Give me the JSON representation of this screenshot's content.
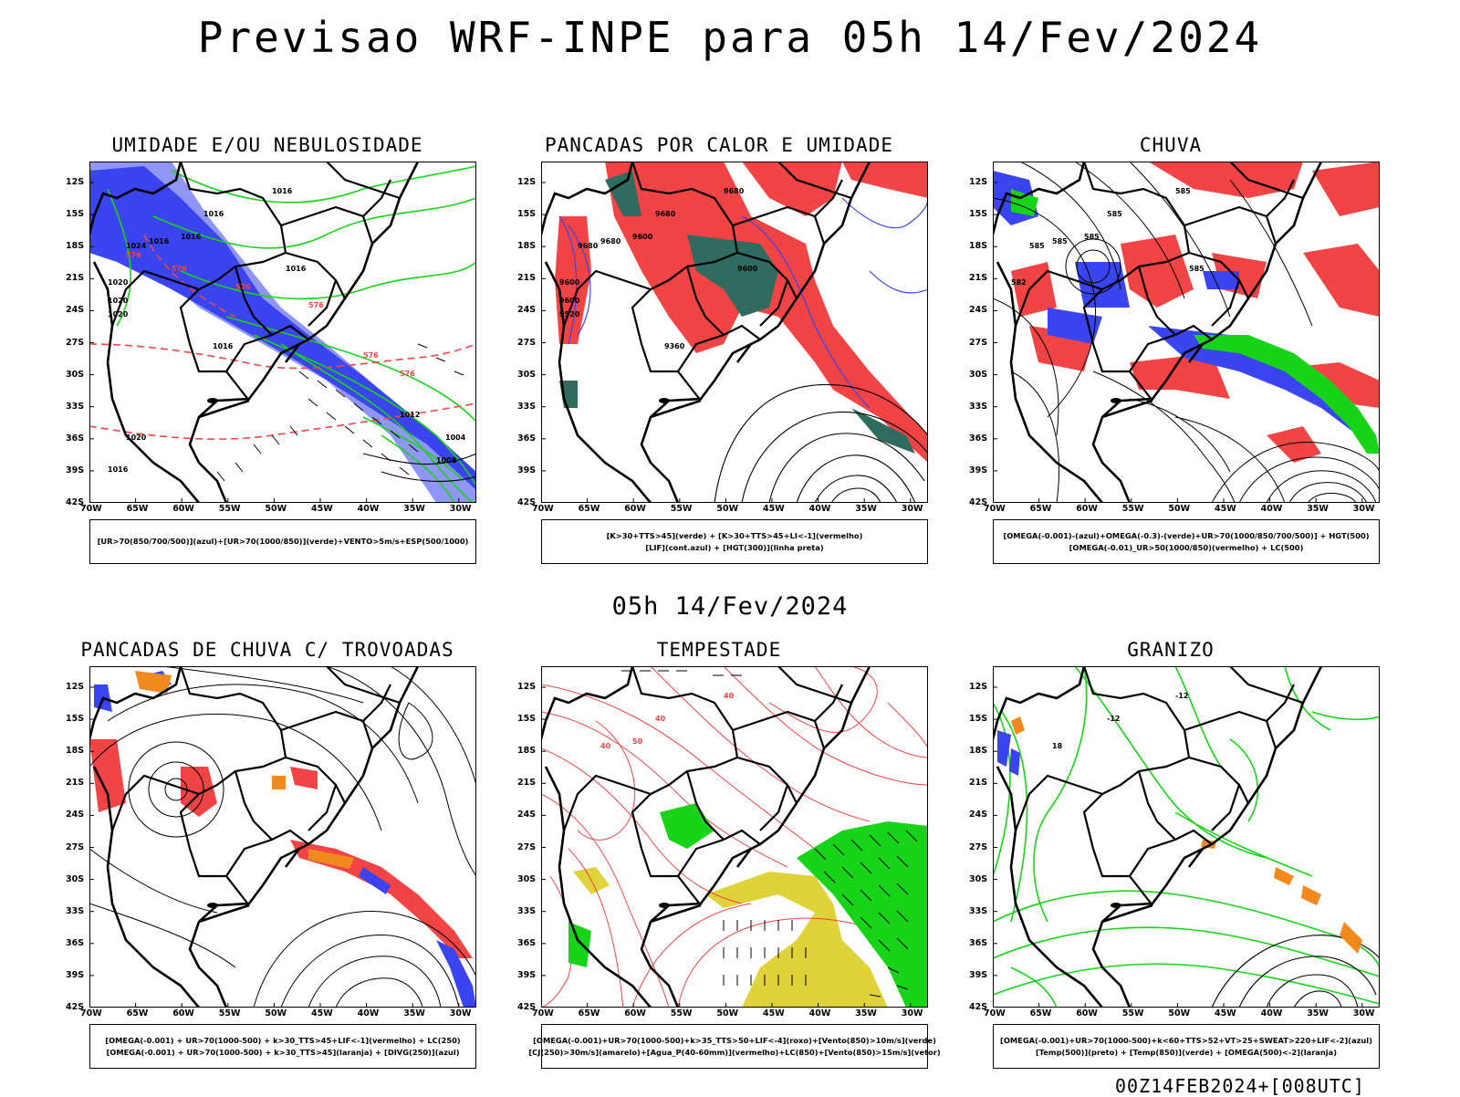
{
  "title": "Previsao WRF-INPE  para 05h 14/Fev/2024",
  "subtitle": "05h 14/Fev/2024",
  "footer": "00Z14FEB2024+[008UTC]",
  "axes": {
    "lat_labels": [
      "12S",
      "15S",
      "18S",
      "21S",
      "24S",
      "27S",
      "30S",
      "33S",
      "36S",
      "39S",
      "42S"
    ],
    "lon_labels": [
      "70W",
      "65W",
      "60W",
      "55W",
      "50W",
      "45W",
      "40W",
      "35W",
      "30W"
    ]
  },
  "colors": {
    "blue": "#3a44f0",
    "lightblue": "#8f96f5",
    "green": "#18d418",
    "red": "#f24444",
    "darkgreen": "#2f6b5e",
    "orange": "#f08a1c",
    "yellow": "#e0d23a",
    "black": "#000000"
  },
  "panels": [
    {
      "title": "UMIDADE E/OU NEBULOSIDADE",
      "legend": [
        "[UR>70(850/700/500)](azul)+[UR>70(1000/850)](verde)+VENTO>5m/s+ESP(500/1000)"
      ],
      "contour_labels": [
        "1016",
        "1016",
        "1016",
        "1016",
        "1016",
        "1024",
        "1020",
        "1020",
        "1020",
        "1016",
        "1012",
        "1008",
        "1004",
        "1020",
        "1016",
        "576",
        "576",
        "576",
        "576",
        "576",
        "576"
      ]
    },
    {
      "title": "PANCADAS POR CALOR E UMIDADE",
      "legend": [
        "[K>30+TTS>45](verde) + [K>30+TTS>45+LI<-1](vermelho)",
        "[LIF](cont.azul) + [HGT(300)](linha preta)"
      ],
      "contour_labels": [
        "9680",
        "9680",
        "9680",
        "9600",
        "9600",
        "9680",
        "9600",
        "9600",
        "9520",
        "9360"
      ]
    },
    {
      "title": "CHUVA",
      "legend": [
        "[OMEGA(-0.001)-(azul)+OMEGA(-0.3)-(verde)+UR>70(1000/850/700/500)] + HGT(500)",
        "[OMEGA(-0.01)_UR>50(1000/850)(vermelho) + LC(500)"
      ],
      "contour_labels": [
        "585",
        "585",
        "585",
        "585",
        "585",
        "585",
        "582"
      ]
    },
    {
      "title": "PANCADAS DE CHUVA C/ TROVOADAS",
      "legend": [
        "[OMEGA(-0.001) + UR>70(1000-500) + k>30_TTS>45+LIF<-1](vermelho) + LC(250)",
        "[OMEGA(-0.001) + UR>70(1000-500) + k>30_TTS>45](laranja) + [DIVG(250)](azul)"
      ],
      "contour_labels": []
    },
    {
      "title": "TEMPESTADE",
      "legend": [
        "[OMEGA(-0.001)+UR>70(1000-500)+k>35_TTS>50+LIF<-4](roxo)+[Vento(850)>10m/s](verde)",
        "[CJ(250)>30m/s](amarelo)+[Agua_P(40-60mm)](vermelho)+LC(850)+[Vento(850)>15m/s](vetor)"
      ],
      "contour_labels": [
        "40",
        "40",
        "40",
        "50"
      ]
    },
    {
      "title": "GRANIZO",
      "legend": [
        "[OMEGA(-0.001)+UR>70(1000-500)+k<60+TTS>52+VT>25+SWEAT>220+LIF<-2](azul)",
        "[Temp(500)](preto) + [Temp(850)](verde) + [OMEGA(500)<-2](laranja)"
      ],
      "contour_labels": [
        "-12",
        "-12",
        "18"
      ]
    }
  ]
}
